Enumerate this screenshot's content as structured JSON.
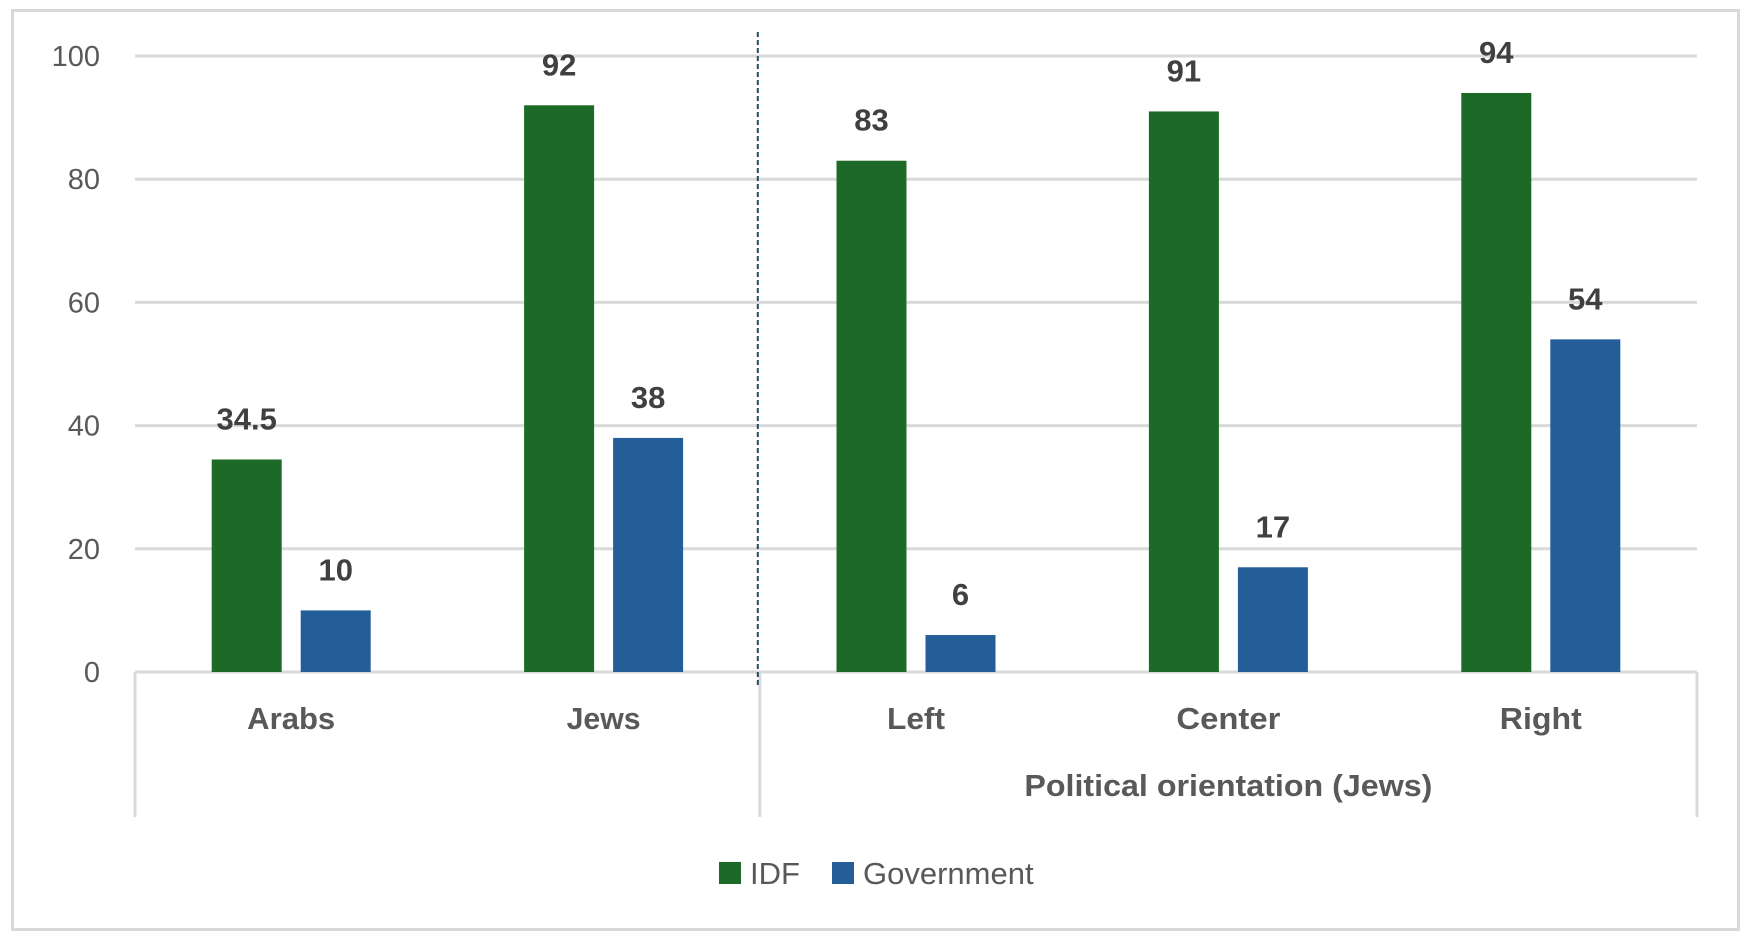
{
  "chart_data": {
    "type": "bar",
    "title": "",
    "xlabel": "",
    "ylabel": "",
    "ylim": [
      0,
      100
    ],
    "yticks": [
      0,
      20,
      40,
      60,
      80,
      100
    ],
    "grid": true,
    "legend_position": "bottom",
    "categories": [
      "Arabs",
      "Jews",
      "Left",
      "Center",
      "Right"
    ],
    "category_groups": [
      {
        "label": "",
        "categories": [
          "Arabs",
          "Jews"
        ]
      },
      {
        "label": "Political orientation (Jews)",
        "categories": [
          "Left",
          "Center",
          "Right"
        ]
      }
    ],
    "series": [
      {
        "name": "IDF",
        "color": "#1d6a28",
        "values": [
          34.5,
          92,
          83,
          91,
          94
        ]
      },
      {
        "name": "Government",
        "color": "#245e99",
        "values": [
          10,
          38,
          6,
          17,
          54
        ]
      }
    ],
    "data_labels": true,
    "divider_after_category": "Jews",
    "divider_color": "#1f4e5f"
  }
}
